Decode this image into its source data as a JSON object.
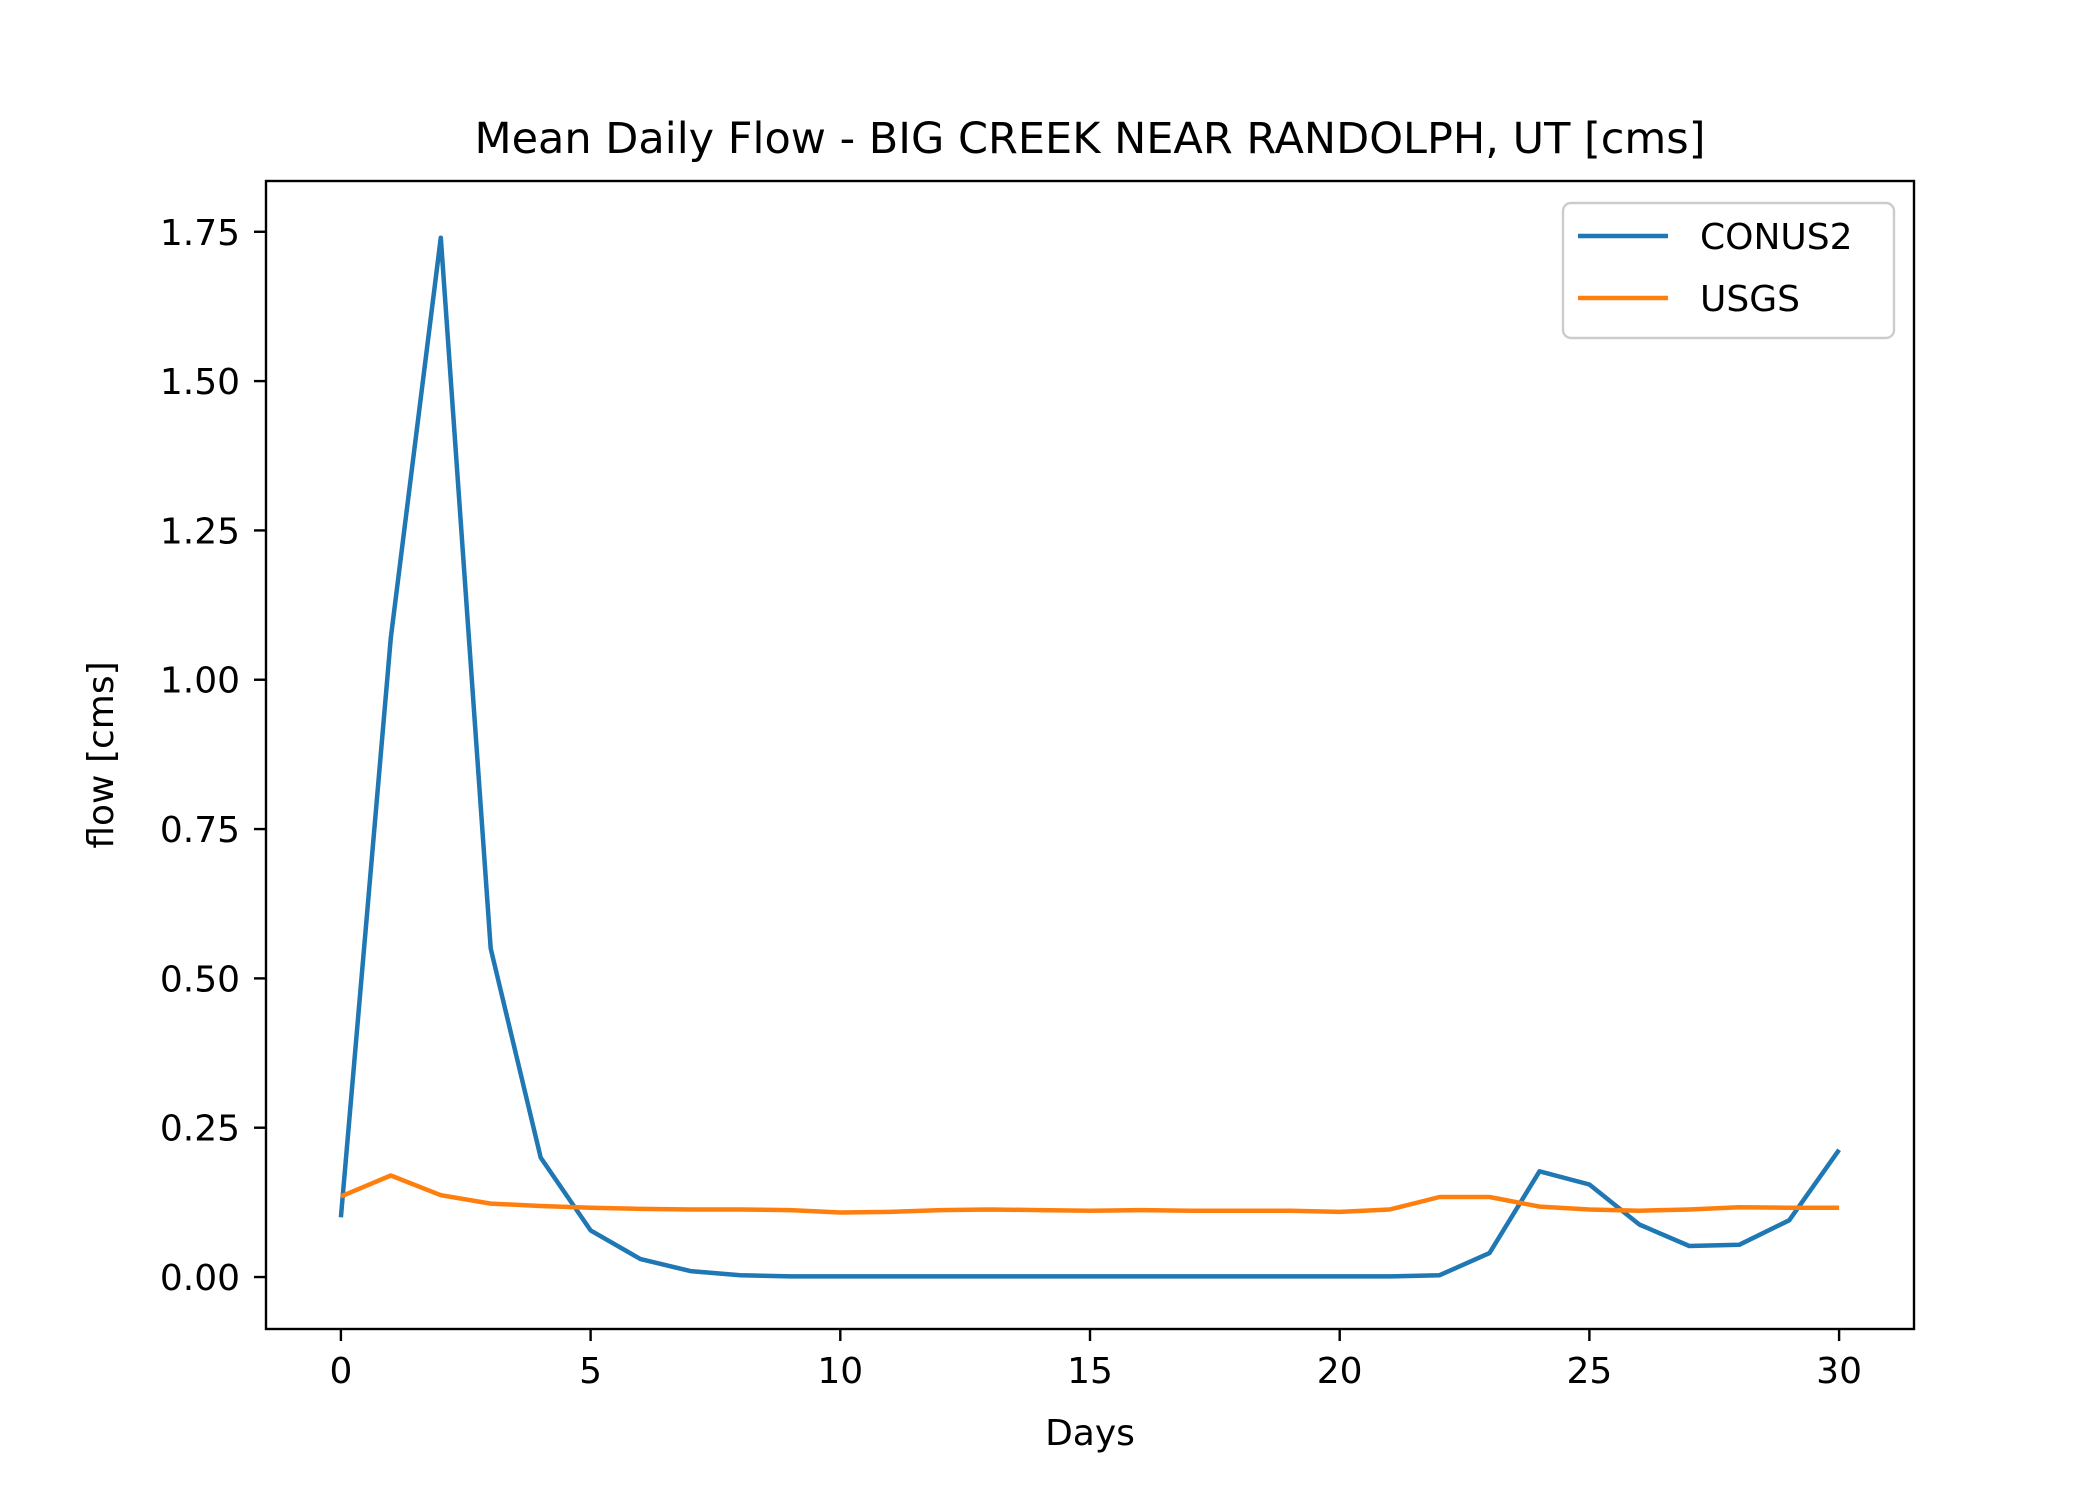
{
  "chart_data": {
    "type": "line",
    "title": "Mean Daily Flow - BIG CREEK NEAR RANDOLPH, UT [cms]",
    "xlabel": "Days",
    "ylabel": "flow [cms]",
    "xlim": [
      -1.5,
      31.5
    ],
    "ylim": [
      -0.087,
      1.835
    ],
    "xticks": [
      0,
      5,
      10,
      15,
      20,
      25,
      30
    ],
    "xtick_labels": [
      "0",
      "5",
      "10",
      "15",
      "20",
      "25",
      "30"
    ],
    "yticks": [
      0,
      0.25,
      0.5,
      0.75,
      1.0,
      1.25,
      1.5,
      1.75
    ],
    "ytick_labels": [
      "0.00",
      "0.25",
      "0.50",
      "0.75",
      "1.00",
      "1.25",
      "1.50",
      "1.75"
    ],
    "grid": false,
    "legend_position": "top-right",
    "x": [
      0,
      1,
      2,
      3,
      4,
      5,
      6,
      7,
      8,
      9,
      10,
      11,
      12,
      13,
      14,
      15,
      16,
      17,
      18,
      19,
      20,
      21,
      22,
      23,
      24,
      25,
      26,
      27,
      28,
      29,
      30
    ],
    "series": [
      {
        "name": "CONUS2",
        "color": "#1f77b4",
        "values": [
          0.1,
          1.07,
          1.74,
          0.55,
          0.2,
          0.078,
          0.03,
          0.01,
          0.003,
          0.001,
          0.001,
          0.001,
          0.001,
          0.001,
          0.001,
          0.001,
          0.001,
          0.001,
          0.001,
          0.001,
          0.001,
          0.001,
          0.003,
          0.04,
          0.177,
          0.155,
          0.088,
          0.052,
          0.054,
          0.095,
          0.213
        ]
      },
      {
        "name": "USGS",
        "color": "#ff7f0e",
        "values": [
          0.135,
          0.17,
          0.137,
          0.123,
          0.119,
          0.116,
          0.114,
          0.113,
          0.113,
          0.112,
          0.108,
          0.109,
          0.112,
          0.113,
          0.112,
          0.111,
          0.112,
          0.111,
          0.111,
          0.111,
          0.109,
          0.113,
          0.134,
          0.134,
          0.118,
          0.113,
          0.111,
          0.113,
          0.117,
          0.116,
          0.116
        ]
      }
    ]
  }
}
